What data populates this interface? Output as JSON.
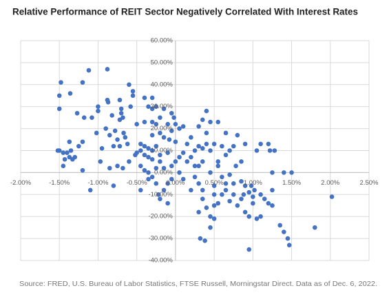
{
  "chart_data": {
    "type": "scatter",
    "title": "Relative Performance of REIT Sector Negatively Correlated With Interest Rates",
    "source": "Source: FRED, U.S. Bureau of Labor Statistics, FTSE Russell, Morningstar Direct. Data as of Dec. 6, 2022.",
    "color": "#4472c4",
    "grid": true,
    "xlim": [
      -2,
      2.5
    ],
    "ylim": [
      -40,
      60
    ],
    "xticks": [
      {
        "value": -2,
        "label": "-2.00%"
      },
      {
        "value": -1.5,
        "label": "-1.50%"
      },
      {
        "value": -1,
        "label": "-1.00%"
      },
      {
        "value": -0.5,
        "label": "-0.50%"
      },
      {
        "value": 0,
        "label": "0.00%"
      },
      {
        "value": 0.5,
        "label": "0.50%"
      },
      {
        "value": 1,
        "label": "1.00%"
      },
      {
        "value": 1.5,
        "label": "1.50%"
      },
      {
        "value": 2,
        "label": "2.00%"
      },
      {
        "value": 2.5,
        "label": "2.50%"
      }
    ],
    "yticks": [
      {
        "value": -40,
        "label": "-40.00%"
      },
      {
        "value": -30,
        "label": "-30.00%"
      },
      {
        "value": -20,
        "label": "-20.00%"
      },
      {
        "value": -10,
        "label": "-10.00%"
      },
      {
        "value": 0,
        "label": "0.00%"
      },
      {
        "value": 10,
        "label": "10.00%"
      },
      {
        "value": 20,
        "label": "20.00%"
      },
      {
        "value": 30,
        "label": "30.00%"
      },
      {
        "value": 40,
        "label": "40.00%"
      },
      {
        "value": 50,
        "label": "50.00%"
      },
      {
        "value": 60,
        "label": "60.00%"
      }
    ],
    "x": [
      -1.5,
      -1.48,
      -1.5,
      -1.36,
      -1.2,
      -1.12,
      -0.88,
      -1.27,
      -1.18,
      -1.08,
      -1.0,
      -1.0,
      -0.88,
      -0.87,
      -0.82,
      -0.72,
      -0.7,
      -0.68,
      -0.6,
      -0.55,
      -0.55,
      -0.58,
      -0.5,
      -0.7,
      -0.72,
      -0.9,
      -1.02,
      -0.85,
      -0.75,
      -0.78,
      -0.67,
      -0.62,
      -0.65,
      -0.8,
      -0.95,
      -0.72,
      -1.2,
      -1.25,
      -1.37,
      -1.35,
      -1.4,
      -1.5,
      -1.45,
      -1.52,
      -1.43,
      -1.37,
      -1.33,
      -1.3,
      -1.45,
      -1.2,
      -1.1,
      -0.97,
      -0.85,
      -0.8,
      -0.75,
      -0.68,
      -0.6,
      -0.52,
      -0.45,
      -0.45,
      -0.5,
      -0.4,
      -0.35,
      -0.3,
      -0.25,
      -0.4,
      -0.35,
      -0.3,
      -0.2,
      -0.45,
      -0.4,
      -0.35,
      -0.3,
      -0.25,
      -0.22,
      -0.15,
      -0.1,
      -0.05,
      -0.2,
      -0.1,
      -0.35,
      -0.45,
      -0.4,
      -0.3,
      -0.35,
      -0.25,
      -0.15,
      -0.05,
      -0.02,
      -0.4,
      -0.3,
      -0.25,
      -0.1,
      0.0,
      0.05,
      -0.05,
      -0.3,
      -0.2,
      -0.15,
      -0.08,
      0.0,
      0.1,
      0.15,
      0.2,
      0.25,
      0.3,
      0.35,
      0.4,
      0.45,
      0.1,
      0.05,
      0.0,
      -0.05,
      0.05,
      0.15,
      0.2,
      0.3,
      0.35,
      0.25,
      0.3,
      0.2,
      0.1,
      0.35,
      0.4,
      0.5,
      0.5,
      0.45,
      0.3,
      0.32,
      0.38,
      0.45,
      0.55,
      0.6,
      0.65,
      0.7,
      0.75,
      0.8,
      0.85,
      0.9,
      0.95,
      1.0,
      1.05,
      1.1,
      1.15,
      1.2,
      1.25,
      1.35,
      1.4,
      1.45,
      1.47,
      1.8,
      2.02,
      1.25,
      1.1,
      0.95,
      0.5,
      0.6,
      0.7,
      0.55,
      0.65,
      0.75,
      0.8,
      0.85,
      0.9,
      0.6,
      0.5,
      0.45,
      0.35,
      0.4,
      0.3,
      0.55,
      0.4,
      0.65,
      0.7,
      0.78,
      0.85,
      0.9,
      0.95,
      1.0,
      1.02,
      1.05,
      1.1,
      1.2,
      1.22,
      1.28,
      1.25,
      1.4,
      1.5,
      0.98,
      0.88,
      0.75,
      0.65,
      0.5,
      0.35,
      0.25,
      0.45,
      0.55,
      -0.1,
      -0.2,
      -0.15,
      -0.25,
      -0.3,
      -0.2
    ],
    "values": [
      35,
      41,
      29,
      36,
      41,
      46.5,
      47,
      27,
      25,
      25,
      30,
      28,
      33,
      32,
      26,
      33,
      29,
      25,
      40,
      37,
      35,
      30,
      22,
      27,
      24,
      20,
      18,
      17,
      15,
      19,
      18,
      13,
      16,
      12,
      11,
      12,
      14,
      12,
      14,
      10,
      9,
      10,
      9,
      10,
      6,
      7,
      6,
      7,
      3,
      1,
      -8,
      5,
      2,
      -6,
      3,
      2,
      5,
      8,
      13,
      10,
      9,
      12,
      11,
      10,
      12,
      8,
      7,
      6,
      8,
      3,
      1,
      0,
      -2,
      -5,
      -10,
      -8,
      -5,
      -3,
      -12,
      -14,
      -3,
      -8,
      34,
      34,
      30,
      30,
      29,
      27,
      25,
      23,
      23,
      22,
      22,
      22,
      20,
      19,
      17,
      18,
      16,
      15,
      14,
      21,
      13,
      16,
      10,
      12,
      11,
      13,
      10,
      9,
      7,
      5,
      3,
      0,
      5,
      7,
      3,
      5,
      -2,
      -5,
      -8,
      -3,
      -12,
      -16,
      -15,
      -21,
      -20,
      -18,
      -30,
      -31,
      -25,
      -14,
      -10,
      -8,
      -13,
      -5,
      -15,
      -12,
      -18,
      -20,
      -14,
      -21,
      -20,
      -12,
      -14,
      -15,
      -24,
      -27,
      -30,
      -33,
      -25,
      -11,
      -8,
      -10,
      -35,
      -6,
      -2,
      -1,
      5,
      8,
      12,
      17,
      5,
      13,
      12,
      13,
      23,
      24,
      28,
      21,
      23,
      18,
      18,
      10,
      3,
      -4,
      -6,
      -9,
      -11,
      -8,
      10,
      13,
      13,
      10,
      10,
      0,
      0,
      0,
      -6,
      -10,
      -10,
      -5,
      -10,
      -8,
      3,
      0,
      3,
      9,
      5,
      2,
      2,
      29,
      25
    ]
  }
}
